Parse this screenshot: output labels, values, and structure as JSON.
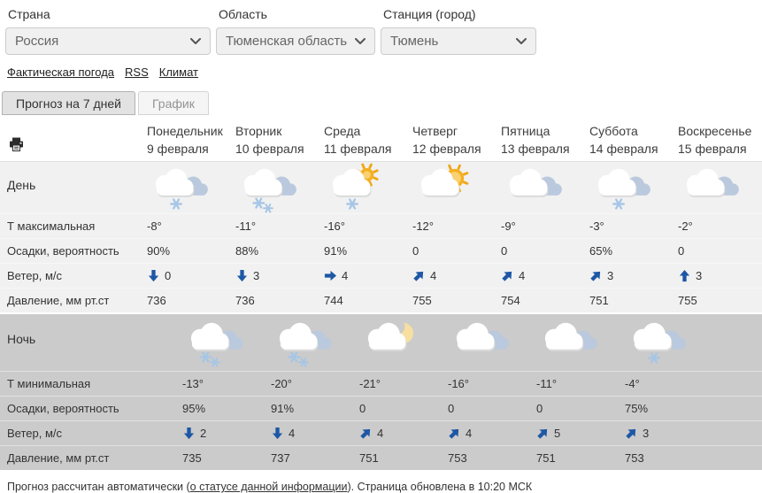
{
  "selectors": {
    "country": {
      "label": "Страна",
      "value": "Россия"
    },
    "region": {
      "label": "Область",
      "value": "Тюменская область"
    },
    "station": {
      "label": "Станция (город)",
      "value": "Тюмень"
    }
  },
  "links": [
    "Фактическая погода",
    "RSS",
    "Климат"
  ],
  "tabs": [
    {
      "label": "Прогноз на 7 дней",
      "active": true
    },
    {
      "label": "График",
      "active": false
    }
  ],
  "days": [
    {
      "name": "Понедельник",
      "date": "9 февраля"
    },
    {
      "name": "Вторник",
      "date": "10 февраля"
    },
    {
      "name": "Среда",
      "date": "11 февраля"
    },
    {
      "name": "Четверг",
      "date": "12 февраля"
    },
    {
      "name": "Пятница",
      "date": "13 февраля"
    },
    {
      "name": "Суббота",
      "date": "14 февраля"
    },
    {
      "name": "Воскресенье",
      "date": "15 февраля"
    }
  ],
  "day_section": {
    "label": "День",
    "icons": [
      "cloud-snow-1",
      "cloud-snow-2",
      "sun-cloud-snow-1",
      "sun-cloud",
      "cloudy",
      "cloud-snow-1",
      "cloudy"
    ],
    "rows": [
      {
        "label": "Т максимальная",
        "type": "text",
        "values": [
          "-8°",
          "-11°",
          "-16°",
          "-12°",
          "-9°",
          "-3°",
          "-2°"
        ]
      },
      {
        "label": "Осадки, вероятность",
        "type": "text",
        "values": [
          "90%",
          "88%",
          "91%",
          "0",
          "0",
          "65%",
          "0"
        ]
      },
      {
        "label": "Ветер, м/с",
        "type": "wind",
        "values": [
          {
            "dir": "down",
            "speed": "0"
          },
          {
            "dir": "down",
            "speed": "3"
          },
          {
            "dir": "right",
            "speed": "4"
          },
          {
            "dir": "up-right",
            "speed": "4"
          },
          {
            "dir": "up-right",
            "speed": "4"
          },
          {
            "dir": "up-right",
            "speed": "3"
          },
          {
            "dir": "up",
            "speed": "3"
          }
        ]
      },
      {
        "label": "Давление, мм рт.ст",
        "type": "text",
        "values": [
          "736",
          "736",
          "744",
          "755",
          "754",
          "751",
          "755"
        ]
      }
    ]
  },
  "night_section": {
    "label": "Ночь",
    "icons": [
      "cloud-snow-2",
      "cloud-snow-2",
      "moon-cloud",
      "cloudy",
      "cloudy",
      "cloud-snow-1"
    ],
    "rows": [
      {
        "label": "Т минимальная",
        "type": "text",
        "values": [
          "-13°",
          "-20°",
          "-21°",
          "-16°",
          "-11°",
          "-4°"
        ]
      },
      {
        "label": "Осадки, вероятность",
        "type": "text",
        "values": [
          "95%",
          "91%",
          "0",
          "0",
          "0",
          "75%"
        ]
      },
      {
        "label": "Ветер, м/с",
        "type": "wind",
        "values": [
          {
            "dir": "down",
            "speed": "2"
          },
          {
            "dir": "down",
            "speed": "4"
          },
          {
            "dir": "up-right",
            "speed": "4"
          },
          {
            "dir": "up-right",
            "speed": "4"
          },
          {
            "dir": "up-right",
            "speed": "5"
          },
          {
            "dir": "up-right",
            "speed": "3"
          }
        ]
      },
      {
        "label": "Давление, мм рт.ст",
        "type": "text",
        "values": [
          "735",
          "737",
          "751",
          "753",
          "751",
          "753"
        ]
      }
    ]
  },
  "footer": {
    "text_before": "Прогноз рассчитан автоматически (",
    "link": "о статусе данной информации",
    "text_after": "). Страница обновлена в 10:20 МСК"
  },
  "colors": {
    "accent_blue": "#1d57a5",
    "day_bg": "#f1f1f1",
    "night_bg": "#cbcbcb",
    "snowflake": "#a6c6e6",
    "back_cloud": "#bac9dd",
    "sun": "#f5b021"
  }
}
